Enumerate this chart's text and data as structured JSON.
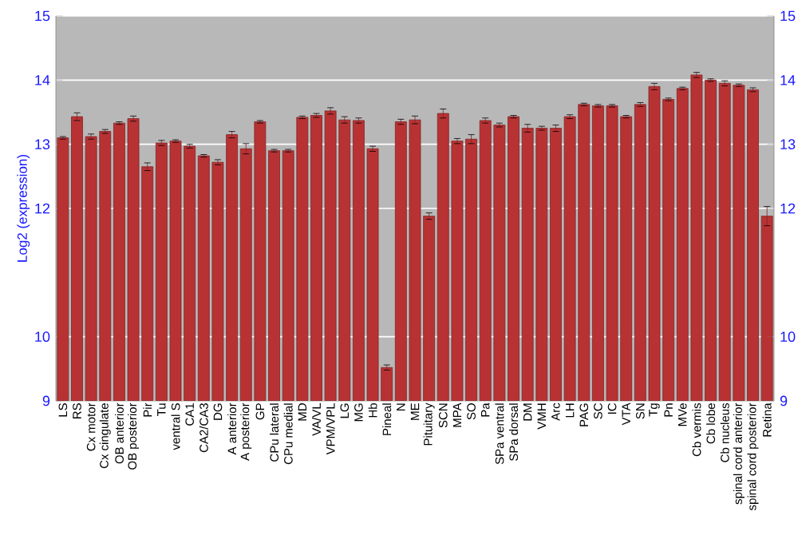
{
  "chart_data": {
    "type": "bar",
    "ylabel": "Log2 (expression)",
    "categories": [
      "LS",
      "RS",
      "Cx motor",
      "Cx cingulate",
      "OB anterior",
      "OB posterior",
      "Pir",
      "Tu",
      "ventral S",
      "CA1",
      "CA2/CA3",
      "DG",
      "A anterior",
      "A posterior",
      "GP",
      "CPu lateral",
      "CPu medial",
      "MD",
      "VA/VL",
      "VPM/VPL",
      "LG",
      "MG",
      "Hb",
      "Pineal",
      "N",
      "ME",
      "Pituitary",
      "SCN",
      "MPA",
      "SO",
      "Pa",
      "SPa ventral",
      "SPa dorsal",
      "DM",
      "VMH",
      "Arc",
      "LH",
      "PAG",
      "SC",
      "IC",
      "VTA",
      "SN",
      "Tg",
      "Pn",
      "MVe",
      "Cb vermis",
      "Cb lobe",
      "Cb nucleus",
      "spinal cord anterior",
      "spinal cord posterior",
      "Retina"
    ],
    "values": [
      13.1,
      13.43,
      13.12,
      13.2,
      13.33,
      13.4,
      12.65,
      13.02,
      13.05,
      12.97,
      12.82,
      12.72,
      13.15,
      12.93,
      13.35,
      12.9,
      12.9,
      13.42,
      13.45,
      13.52,
      13.38,
      13.37,
      12.93,
      9.52,
      13.35,
      13.38,
      11.88,
      13.48,
      13.05,
      13.08,
      13.37,
      13.3,
      13.43,
      13.25,
      13.25,
      13.25,
      13.43,
      13.62,
      13.6,
      13.6,
      13.43,
      13.62,
      13.9,
      13.7,
      13.87,
      14.08,
      14.0,
      13.95,
      13.92,
      13.85,
      11.88
    ],
    "errors": [
      0.02,
      0.06,
      0.04,
      0.03,
      0.02,
      0.04,
      0.06,
      0.04,
      0.02,
      0.03,
      0.02,
      0.04,
      0.05,
      0.08,
      0.02,
      0.02,
      0.02,
      0.02,
      0.03,
      0.05,
      0.05,
      0.04,
      0.04,
      0.04,
      0.04,
      0.06,
      0.05,
      0.07,
      0.04,
      0.07,
      0.04,
      0.03,
      0.02,
      0.06,
      0.03,
      0.05,
      0.03,
      0.02,
      0.02,
      0.02,
      0.02,
      0.03,
      0.05,
      0.02,
      0.02,
      0.04,
      0.02,
      0.04,
      0.02,
      0.03,
      0.15
    ],
    "color": "#b83234",
    "ylim": [
      9,
      15
    ],
    "yticks": [
      9,
      10,
      12,
      13,
      14,
      15
    ],
    "y2lim": [
      9,
      15
    ],
    "y2ticks": [
      9,
      10,
      12,
      13,
      14,
      15
    ],
    "grid": "y"
  }
}
